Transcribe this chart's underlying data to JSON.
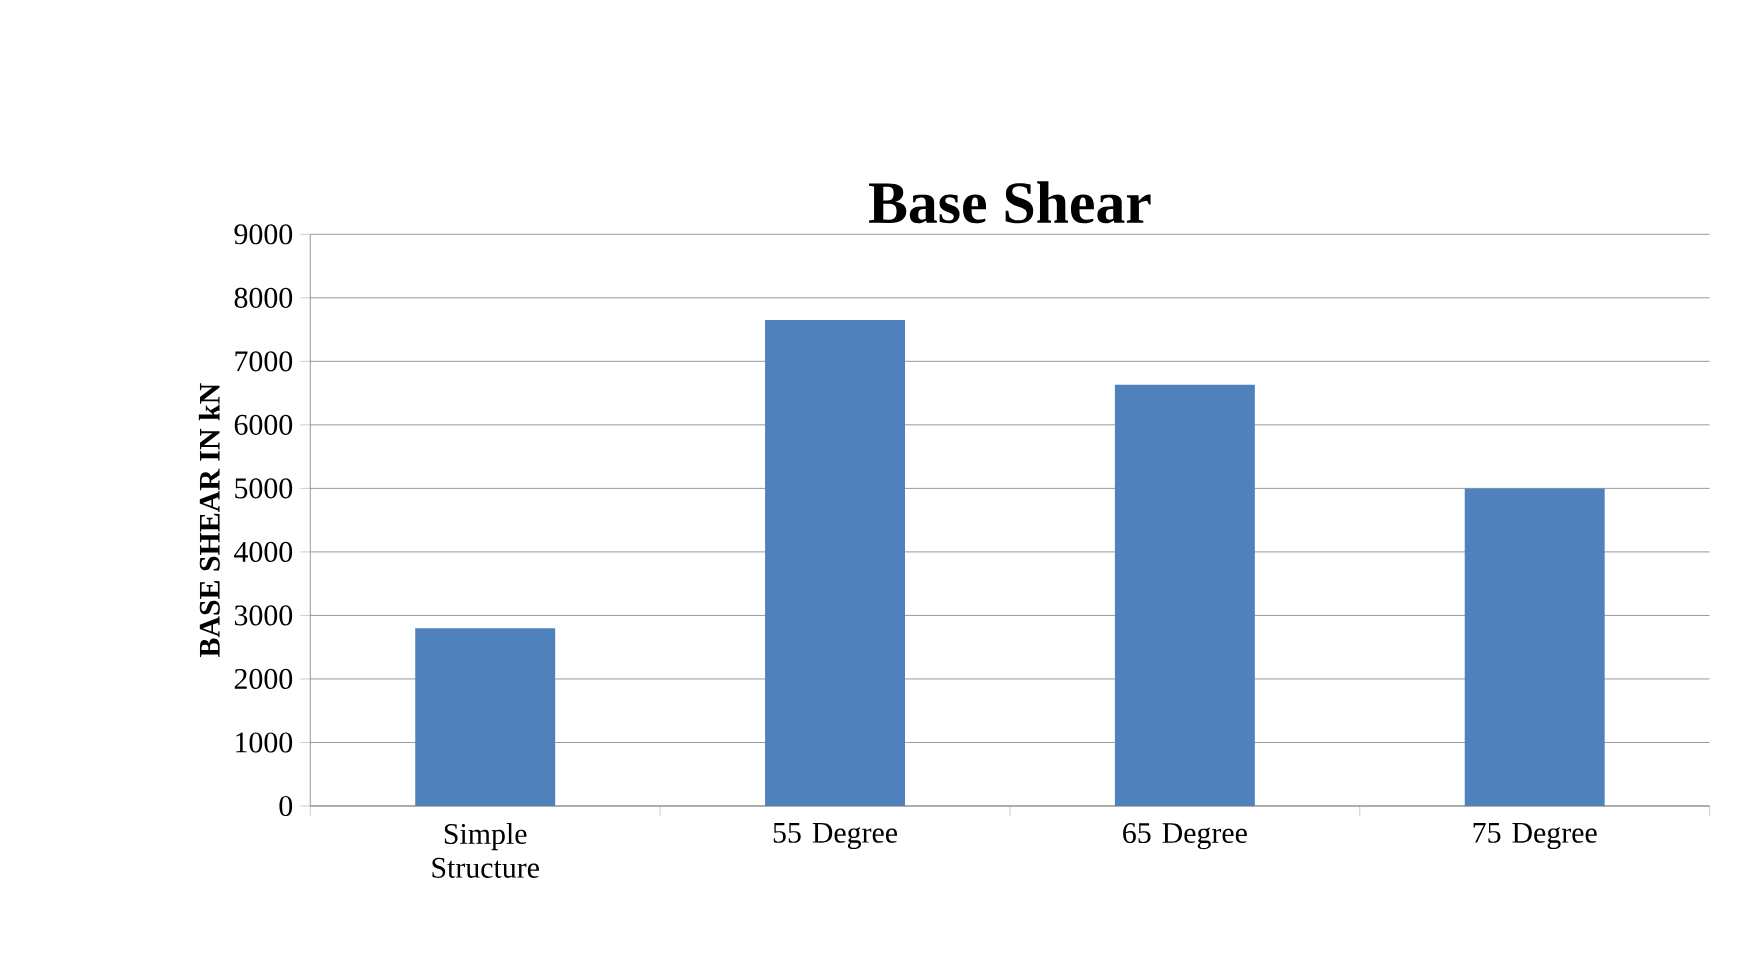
{
  "chart_data": {
    "type": "bar",
    "title": "Base Shear",
    "ylabel": "BASE SHEAR IN kN",
    "categories": [
      "Simple Structure",
      "55 Degree",
      "65 Degree",
      "75 Degree"
    ],
    "values": [
      2800,
      7650,
      6630,
      5000
    ],
    "color": "#4f81bd",
    "ylim": [
      0,
      9000
    ],
    "yticks": [
      0,
      1000,
      2000,
      3000,
      4000,
      5000,
      6000,
      7000,
      8000,
      9000
    ],
    "grid": "y"
  }
}
